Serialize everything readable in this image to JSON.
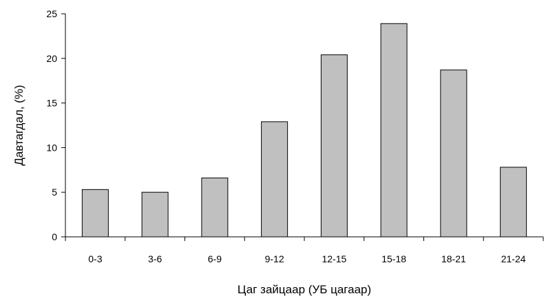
{
  "chart_data": {
    "type": "bar",
    "title": "",
    "xlabel": "Цаг зайцаар  (УБ цагаар)",
    "ylabel": "Давтагдал, (%)",
    "categories": [
      "0-3",
      "3-6",
      "6-9",
      "9-12",
      "12-15",
      "15-18",
      "18-21",
      "21-24"
    ],
    "values": [
      5.3,
      5.0,
      6.6,
      12.9,
      20.4,
      23.9,
      18.7,
      7.8
    ],
    "ylim": [
      0,
      25
    ],
    "yticks": [
      0,
      5,
      10,
      15,
      20,
      25
    ],
    "grid": false,
    "legend": "none",
    "colors": {
      "bar_fill": "#c0c0c0",
      "bar_stroke": "#000000",
      "axis": "#000000"
    }
  }
}
